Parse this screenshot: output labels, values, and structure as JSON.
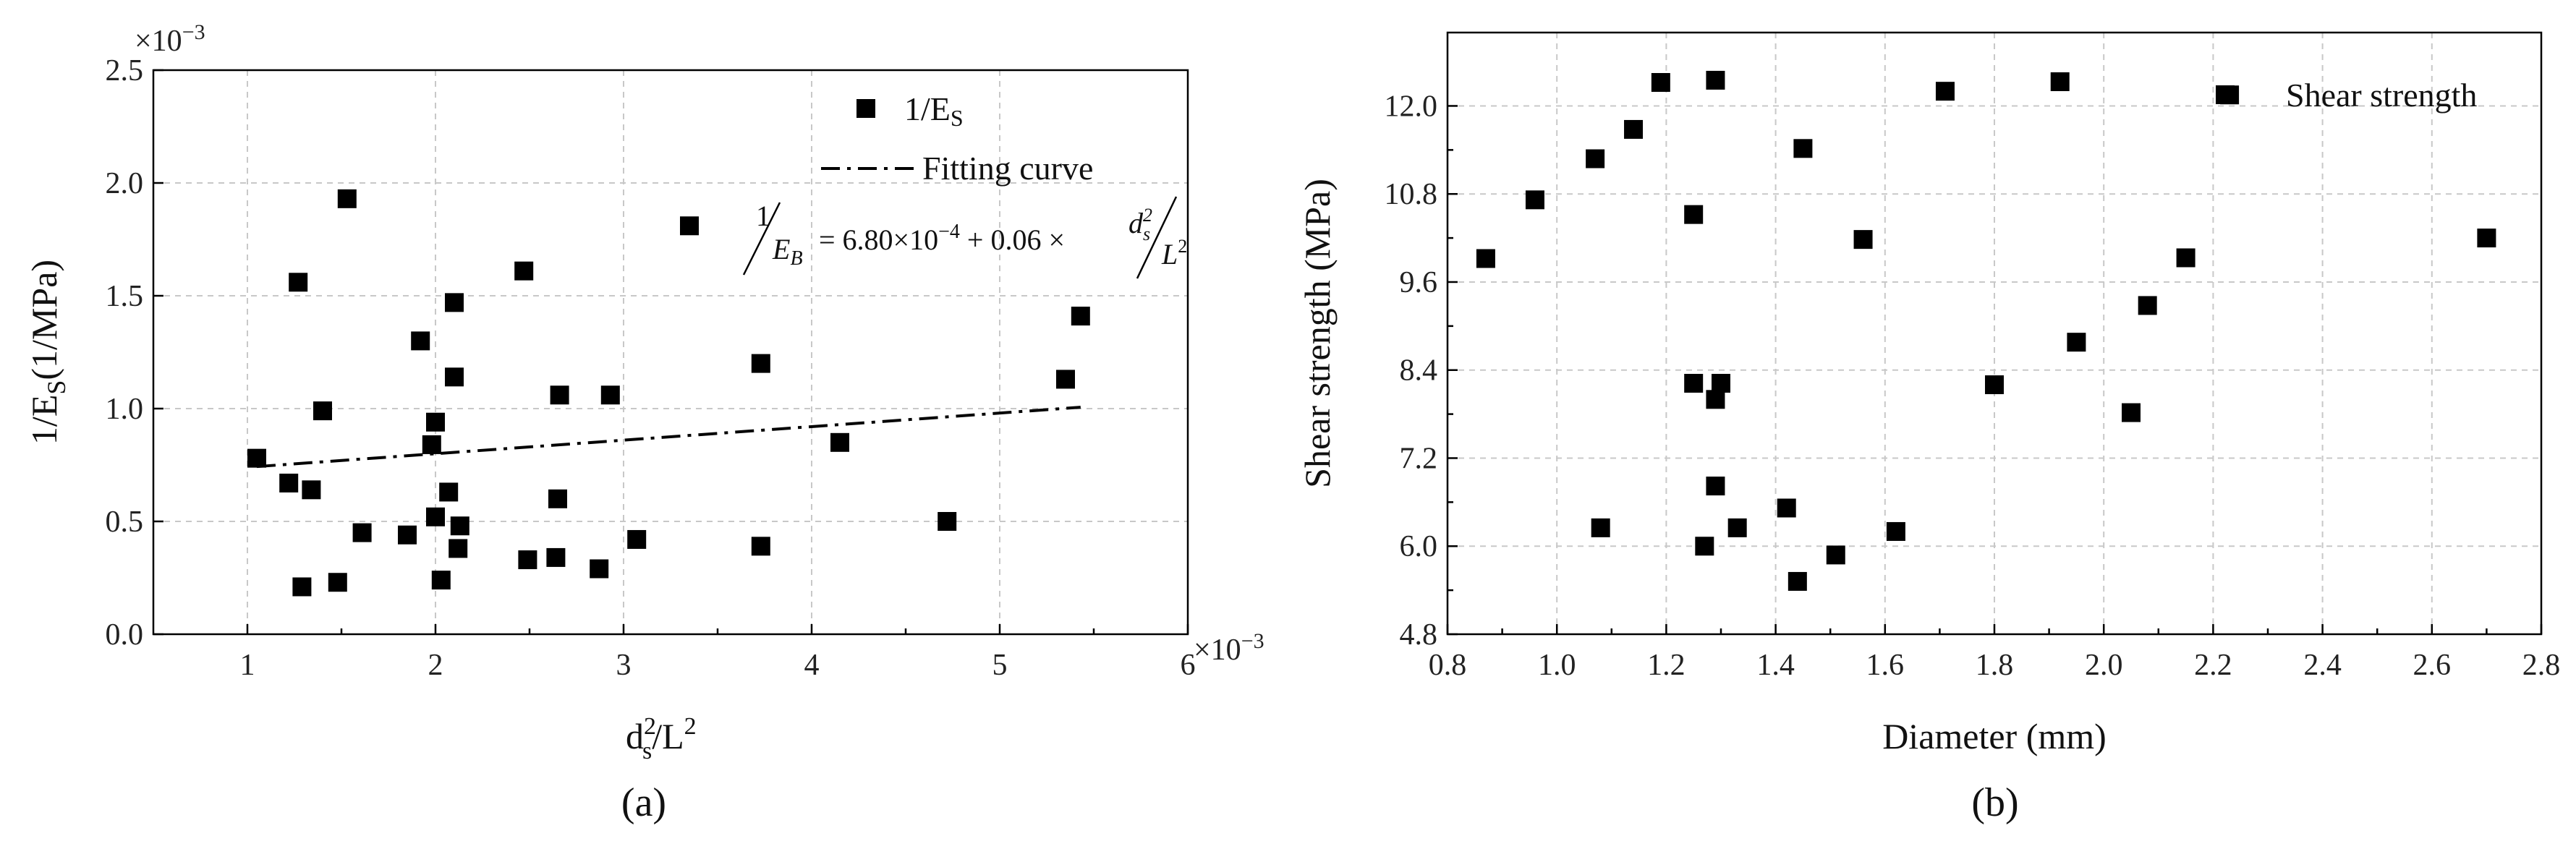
{
  "chart_data": [
    {
      "panel": "(a)",
      "type": "scatter",
      "series": [
        {
          "name": "1/E_S",
          "legend_label": "1/E",
          "legend_sub": "S",
          "marker": "filled-square",
          "points": [
            [
              1.05,
              0.78
            ],
            [
              1.22,
              0.67
            ],
            [
              1.27,
              1.56
            ],
            [
              1.29,
              0.21
            ],
            [
              1.34,
              0.64
            ],
            [
              1.4,
              0.99
            ],
            [
              1.48,
              0.23
            ],
            [
              1.53,
              1.93
            ],
            [
              1.61,
              0.45
            ],
            [
              1.85,
              0.44
            ],
            [
              1.92,
              1.3
            ],
            [
              1.98,
              0.84
            ],
            [
              2.0,
              0.52
            ],
            [
              2.0,
              0.94
            ],
            [
              2.03,
              0.24
            ],
            [
              2.07,
              0.63
            ],
            [
              2.1,
              1.47
            ],
            [
              2.1,
              1.14
            ],
            [
              2.12,
              0.38
            ],
            [
              2.13,
              0.48
            ],
            [
              2.47,
              1.61
            ],
            [
              2.49,
              0.33
            ],
            [
              2.64,
              0.34
            ],
            [
              2.65,
              0.6
            ],
            [
              2.66,
              1.06
            ],
            [
              2.87,
              0.29
            ],
            [
              2.93,
              1.06
            ],
            [
              3.07,
              0.42
            ],
            [
              3.35,
              1.81
            ],
            [
              3.73,
              0.39
            ],
            [
              3.73,
              1.2
            ],
            [
              4.15,
              0.85
            ],
            [
              4.72,
              0.5
            ],
            [
              5.35,
              1.13
            ],
            [
              5.43,
              1.41
            ]
          ]
        },
        {
          "name": "Fitting curve",
          "style": "dash-dot",
          "x": [
            1.05,
            5.43
          ],
          "y": [
            0.743,
            1.006
          ]
        }
      ],
      "equation": {
        "lhs_num": "1",
        "lhs_den": "E",
        "lhs_sub": "B",
        "rhs": "= 6.80×10",
        "exp": "−4",
        "rhs2": " + 0.06 ×",
        "frac_num": "d",
        "frac_num_sup": "2",
        "frac_num_sub": "s",
        "frac_den": "L",
        "frac_den_sup": "2"
      },
      "xlim": [
        0.5,
        6.0
      ],
      "ylim": [
        0.0,
        2.5
      ],
      "xticks": [
        1,
        2,
        3,
        4,
        5,
        6
      ],
      "xtick_labels": [
        "1",
        "2",
        "3",
        "4",
        "5",
        "6"
      ],
      "yticks": [
        0.0,
        0.5,
        1.0,
        1.5,
        2.0,
        2.5
      ],
      "ytick_labels": [
        "0.0",
        "0.5",
        "1.0",
        "1.5",
        "2.0",
        "2.5"
      ],
      "x_multiplier": "×10",
      "x_multiplier_exp": "−3",
      "y_multiplier": "×10",
      "y_multiplier_exp": "−3",
      "xlabel": "d_s^2/L^2",
      "xlabel_parts": {
        "base": "d",
        "sup": "2",
        "sub": "s",
        "rest": "/L",
        "sup2": "2"
      },
      "ylabel": "1/E_S(1/MPa)",
      "ylabel_parts": {
        "pre": "1/E",
        "sub": "S",
        "post": "(1/MPa)"
      },
      "legend": "top-right",
      "grid": true
    },
    {
      "panel": "(b)",
      "type": "scatter",
      "series": [
        {
          "name": "Shear strength",
          "marker": "filled-square",
          "points": [
            [
              0.87,
              9.92
            ],
            [
              0.96,
              10.72
            ],
            [
              1.07,
              11.28
            ],
            [
              1.08,
              6.25
            ],
            [
              1.14,
              11.68
            ],
            [
              1.19,
              12.32
            ],
            [
              1.25,
              8.22
            ],
            [
              1.25,
              10.52
            ],
            [
              1.27,
              6.0
            ],
            [
              1.29,
              12.35
            ],
            [
              1.29,
              8.0
            ],
            [
              1.29,
              6.82
            ],
            [
              1.3,
              8.22
            ],
            [
              1.33,
              6.25
            ],
            [
              1.42,
              6.52
            ],
            [
              1.44,
              5.52
            ],
            [
              1.45,
              11.42
            ],
            [
              1.51,
              5.88
            ],
            [
              1.56,
              10.18
            ],
            [
              1.62,
              6.2
            ],
            [
              1.71,
              12.2
            ],
            [
              1.8,
              8.2
            ],
            [
              1.92,
              12.33
            ],
            [
              1.95,
              8.78
            ],
            [
              2.05,
              7.82
            ],
            [
              2.08,
              9.28
            ],
            [
              2.15,
              9.93
            ],
            [
              2.23,
              12.15
            ],
            [
              2.7,
              10.2
            ]
          ]
        }
      ],
      "xlim": [
        0.8,
        2.8
      ],
      "ylim": [
        4.8,
        13.0
      ],
      "xticks": [
        0.8,
        1.0,
        1.2,
        1.4,
        1.6,
        1.8,
        2.0,
        2.2,
        2.4,
        2.6,
        2.8
      ],
      "xtick_labels": [
        "0.8",
        "1.0",
        "1.2",
        "1.4",
        "1.6",
        "1.8",
        "2.0",
        "2.2",
        "2.4",
        "2.6",
        "2.8"
      ],
      "yticks": [
        4.8,
        6.0,
        7.2,
        8.4,
        9.6,
        10.8,
        12.0
      ],
      "ytick_labels": [
        "4.8",
        "6.0",
        "7.2",
        "8.4",
        "9.6",
        "10.8",
        "12.0"
      ],
      "xlabel": "Diameter (mm)",
      "ylabel": "Shear strength (MPa)",
      "legend": "top-right",
      "grid": true
    }
  ]
}
